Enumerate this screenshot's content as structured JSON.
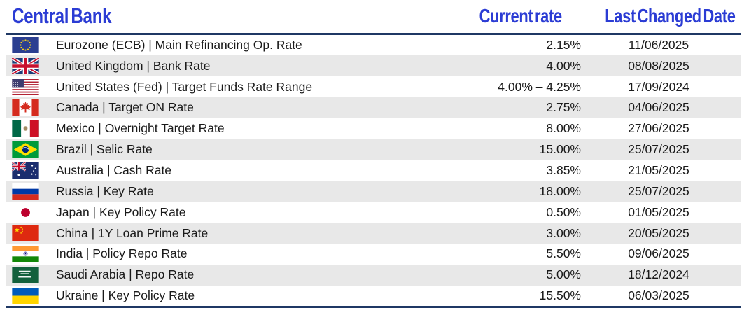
{
  "colors": {
    "header_blue": "#2B3CD4",
    "rule_navy": "#1F3864",
    "row_stripe": "#E8E8E8",
    "text_color": "#1A1A1A"
  },
  "chart_data": {
    "type": "table",
    "title": "Central Bank current rates and last changed dates",
    "columns": [
      {
        "key": "bank",
        "label": "Central Bank",
        "align": "left"
      },
      {
        "key": "rate",
        "label": "Current rate",
        "align": "right"
      },
      {
        "key": "date",
        "label": "Last Changed Date",
        "align": "center"
      }
    ],
    "rows": [
      {
        "flag": "eu",
        "bank": "Eurozone (ECB) | Main Refinancing Op. Rate",
        "rate": "2.15%",
        "date": "11/06/2025"
      },
      {
        "flag": "gb",
        "bank": "United Kingdom | Bank Rate",
        "rate": "4.00%",
        "date": "08/08/2025"
      },
      {
        "flag": "us",
        "bank": "United States (Fed) | Target Funds Rate Range",
        "rate": "4.00% – 4.25%",
        "date": "17/09/2024"
      },
      {
        "flag": "ca",
        "bank": "Canada | Target ON Rate",
        "rate": "2.75%",
        "date": "04/06/2025"
      },
      {
        "flag": "mx",
        "bank": "Mexico | Overnight Target Rate",
        "rate": "8.00%",
        "date": "27/06/2025"
      },
      {
        "flag": "br",
        "bank": "Brazil | Selic Rate",
        "rate": "15.00%",
        "date": "25/07/2025"
      },
      {
        "flag": "au",
        "bank": "Australia | Cash Rate",
        "rate": "3.85%",
        "date": "21/05/2025"
      },
      {
        "flag": "ru",
        "bank": "Russia | Key Rate",
        "rate": "18.00%",
        "date": "25/07/2025"
      },
      {
        "flag": "jp",
        "bank": "Japan | Key Policy Rate",
        "rate": "0.50%",
        "date": "01/05/2025"
      },
      {
        "flag": "cn",
        "bank": "China | 1Y Loan Prime Rate",
        "rate": "3.00%",
        "date": "20/05/2025"
      },
      {
        "flag": "in",
        "bank": "India | Policy Repo Rate",
        "rate": "5.50%",
        "date": "09/06/2025"
      },
      {
        "flag": "sa",
        "bank": "Saudi Arabia | Repo Rate",
        "rate": "5.00%",
        "date": "18/12/2024"
      },
      {
        "flag": "ua",
        "bank": "Ukraine | Key Policy Rate",
        "rate": "15.50%",
        "date": "06/03/2025"
      }
    ]
  }
}
